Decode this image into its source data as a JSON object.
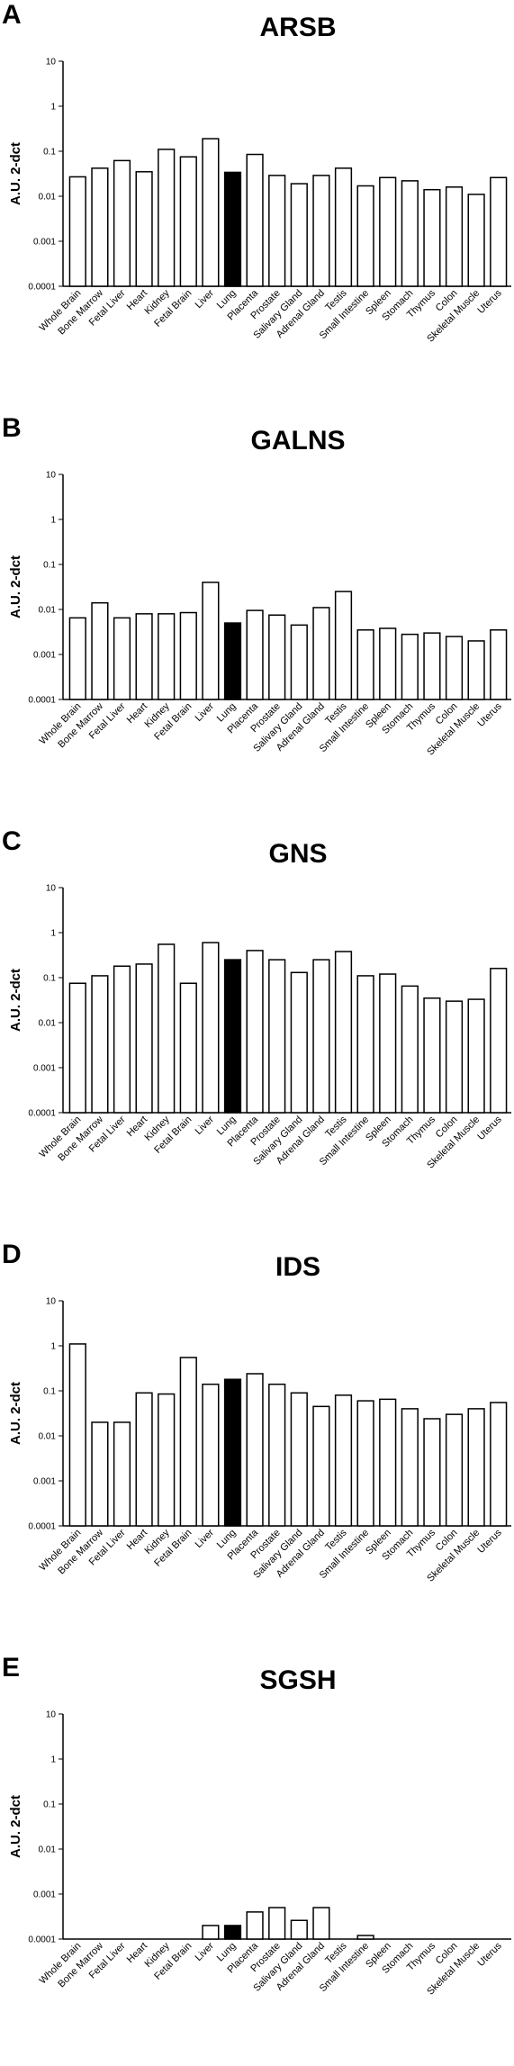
{
  "chart_data": [
    {
      "type": "bar",
      "panel": "A",
      "title": "ARSB",
      "ylabel": "A.U. 2-dct",
      "yscale": "log",
      "ylim": [
        0.0001,
        10
      ],
      "yticks": [
        "10",
        "1",
        "0.1",
        "0.01",
        "0.001",
        "0.0001"
      ],
      "categories": [
        "Whole Brain",
        "Bone Marrow",
        "Fetal Liver",
        "Heart",
        "Kidney",
        "Fetal Brain",
        "Liver",
        "Lung",
        "Placenta",
        "Prostate",
        "Salivary Gland",
        "Adrenal Gland",
        "Testis",
        "Small Intestine",
        "Spleen",
        "Stomach",
        "Thymus",
        "Colon",
        "Skeletal Muscle",
        "Uterus"
      ],
      "values": [
        0.027,
        0.042,
        0.062,
        0.035,
        0.11,
        0.075,
        0.19,
        0.034,
        0.085,
        0.029,
        0.019,
        0.029,
        0.042,
        0.017,
        0.026,
        0.022,
        0.014,
        0.016,
        0.011,
        0.026
      ],
      "highlight_index": 7
    },
    {
      "type": "bar",
      "panel": "B",
      "title": "GALNS",
      "ylabel": "A.U. 2-dct",
      "yscale": "log",
      "ylim": [
        0.0001,
        10
      ],
      "yticks": [
        "10",
        "1",
        "0.1",
        "0.01",
        "0.001",
        "0.0001"
      ],
      "categories": [
        "Whole Brain",
        "Bone Marrow",
        "Fetal Liver",
        "Heart",
        "Kidney",
        "Fetal Brain",
        "Liver",
        "Lung",
        "Placenta",
        "Prostate",
        "Salivary Gland",
        "Adrenal Gland",
        "Testis",
        "Small Intestine",
        "Spleen",
        "Stomach",
        "Thymus",
        "Colon",
        "Skeletal Muscle",
        "Uterus"
      ],
      "values": [
        0.0065,
        0.014,
        0.0065,
        0.008,
        0.008,
        0.0085,
        0.04,
        0.005,
        0.0095,
        0.0075,
        0.0045,
        0.011,
        0.025,
        0.0035,
        0.0038,
        0.0028,
        0.003,
        0.0025,
        0.002,
        0.0035
      ],
      "highlight_index": 7
    },
    {
      "type": "bar",
      "panel": "C",
      "title": "GNS",
      "ylabel": "A.U. 2-dct",
      "yscale": "log",
      "ylim": [
        0.0001,
        10
      ],
      "yticks": [
        "10",
        "1",
        "0.1",
        "0.01",
        "0.001",
        "0.0001"
      ],
      "categories": [
        "Whole Brain",
        "Bone Marrow",
        "Fetal Liver",
        "Heart",
        "Kidney",
        "Fetal Brain",
        "Liver",
        "Lung",
        "Placenta",
        "Prostate",
        "Salivary Gland",
        "Adrenal Gland",
        "Testis",
        "Small Intestine",
        "Spleen",
        "Stomach",
        "Thymus",
        "Colon",
        "Skeletal Muscle",
        "Uterus"
      ],
      "values": [
        0.075,
        0.11,
        0.18,
        0.2,
        0.55,
        0.075,
        0.6,
        0.25,
        0.4,
        0.25,
        0.13,
        0.25,
        0.38,
        0.11,
        0.12,
        0.065,
        0.035,
        0.03,
        0.033,
        0.16
      ],
      "highlight_index": 7
    },
    {
      "type": "bar",
      "panel": "D",
      "title": "IDS",
      "ylabel": "A.U. 2-dct",
      "yscale": "log",
      "ylim": [
        0.0001,
        10
      ],
      "yticks": [
        "10",
        "1",
        "0.1",
        "0.01",
        "0.001",
        "0.0001"
      ],
      "categories": [
        "Whole Brain",
        "Bone Marrow",
        "Fetal Liver",
        "Heart",
        "Kidney",
        "Fetal Brain",
        "Liver",
        "Lung",
        "Placenta",
        "Prostate",
        "Salivary Gland",
        "Adrenal Gland",
        "Testis",
        "Small Intestine",
        "Spleen",
        "Stomach",
        "Thymus",
        "Colon",
        "Skeletal Muscle",
        "Uterus"
      ],
      "values": [
        1.1,
        0.02,
        0.02,
        0.09,
        0.085,
        0.55,
        0.14,
        0.18,
        0.24,
        0.14,
        0.09,
        0.045,
        0.08,
        0.06,
        0.065,
        0.04,
        0.024,
        0.03,
        0.04,
        0.055
      ],
      "highlight_index": 7
    },
    {
      "type": "bar",
      "panel": "E",
      "title": "SGSH",
      "ylabel": "A.U. 2-dct",
      "yscale": "log",
      "ylim": [
        0.0001,
        10
      ],
      "yticks": [
        "10",
        "1",
        "0.1",
        "0.01",
        "0.001",
        "0.0001"
      ],
      "categories": [
        "Whole Brain",
        "Bone Marrow",
        "Fetal Liver",
        "Heart",
        "Kidney",
        "Fetal Brain",
        "Liver",
        "Lung",
        "Placenta",
        "Prostate",
        "Salivary Gland",
        "Adrenal Gland",
        "Testis",
        "Small Intestine",
        "Spleen",
        "Stomach",
        "Thymus",
        "Colon",
        "Skeletal Muscle",
        "Uterus"
      ],
      "values": [
        0,
        0,
        0,
        0,
        0,
        0,
        0.0002,
        0.0002,
        0.0004,
        0.0005,
        0.00026,
        0.0005,
        0,
        0.00012,
        0,
        0,
        0,
        0,
        0,
        0
      ],
      "highlight_index": 7
    }
  ]
}
